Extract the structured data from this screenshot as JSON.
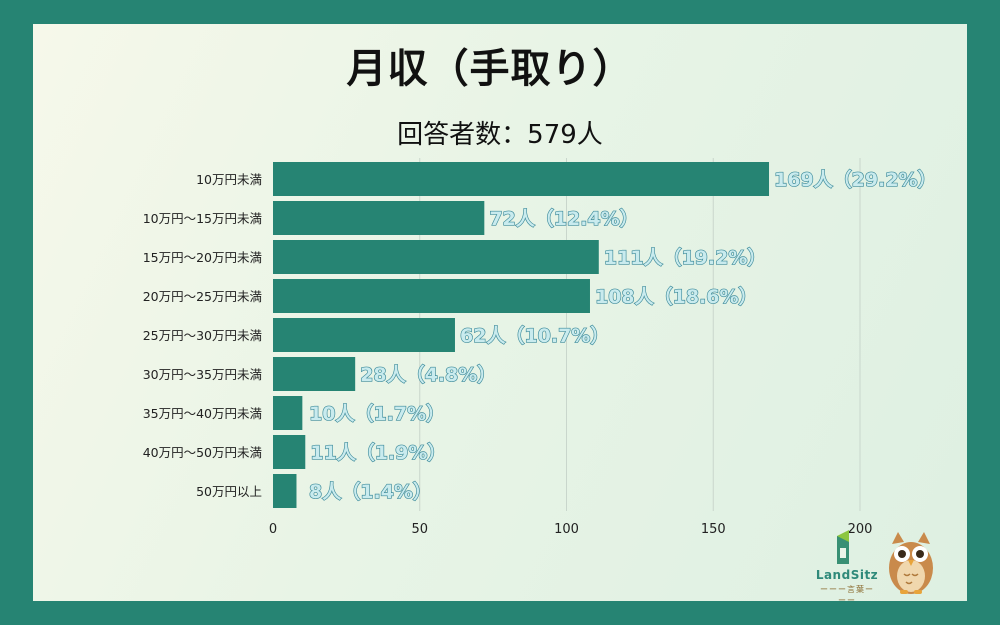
{
  "page": {
    "background": "#268473",
    "card_background": "#eaf5e8"
  },
  "chart_data": {
    "type": "bar",
    "orientation": "horizontal",
    "title": "月収（手取り）",
    "subtitle": "回答者数：579人",
    "categories": [
      "10万円未満",
      "10万円〜15万円未満",
      "15万円〜20万円未満",
      "20万円〜25万円未満",
      "25万円〜30万円未満",
      "30万円〜35万円未満",
      "35万円〜40万円未満",
      "40万円〜50万円未満",
      "50万円以上"
    ],
    "values": [
      169,
      72,
      111,
      108,
      62,
      28,
      10,
      11,
      8
    ],
    "data_labels": [
      "169人（29.2%）",
      "72人（12.4%）",
      "111人（19.2%）",
      "108人（18.6%）",
      "62人（10.7%）",
      "28人（4.8%）",
      "10人（1.7%）",
      "11人（1.9%）",
      "8人（1.4%）"
    ],
    "xlim": [
      0,
      200
    ],
    "xticks": [
      0,
      50,
      100,
      150,
      200
    ],
    "grid": true,
    "bar_color": "#268473",
    "label_color": "#c9ebee",
    "label_stroke": "#3c8a9a"
  },
  "branding": {
    "logo_text": "LandSitz",
    "logo_sub": "ーーー言葉ーーー"
  }
}
